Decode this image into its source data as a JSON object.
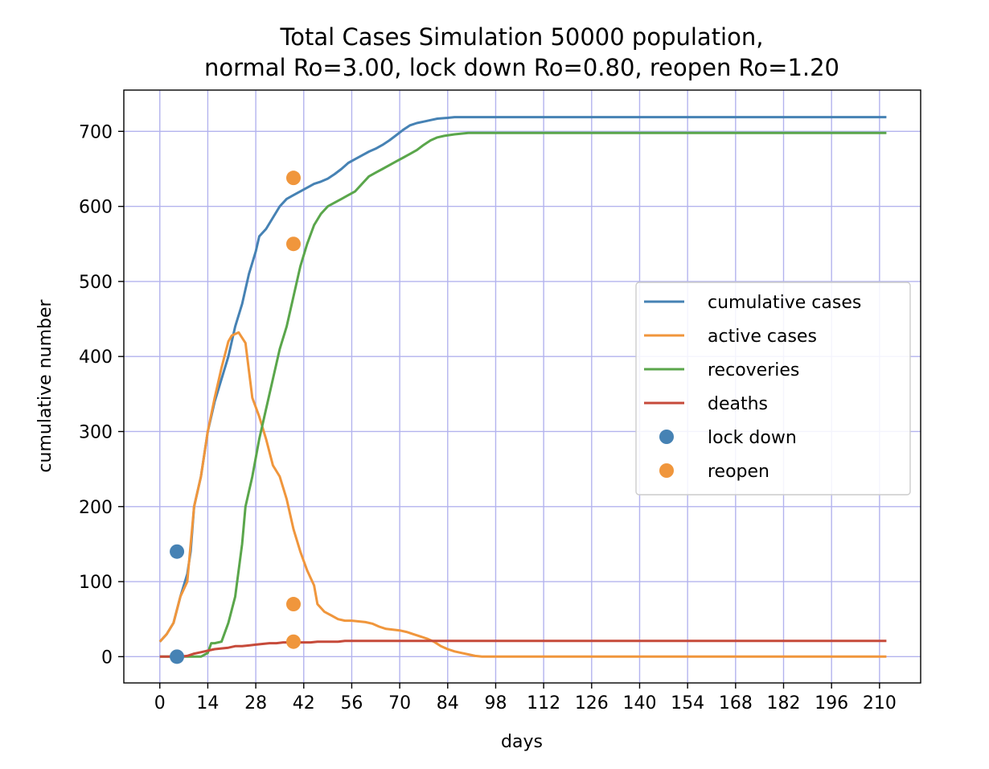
{
  "chart_data": {
    "type": "line",
    "title_lines": [
      "Total Cases Simulation 50000 population,",
      "normal Ro=3.00, lock down Ro=0.80, reopen Ro=1.20"
    ],
    "xlabel": "days",
    "ylabel": "cumulative number",
    "xlim": [
      -10.5,
      222
    ],
    "ylim": [
      -35,
      755
    ],
    "xticks": [
      0,
      14,
      28,
      42,
      56,
      70,
      84,
      98,
      112,
      126,
      140,
      154,
      168,
      182,
      196,
      210
    ],
    "yticks": [
      0,
      100,
      200,
      300,
      400,
      500,
      600,
      700
    ],
    "grid": true,
    "grid_color": "#b3b3ee",
    "legend_position": "center-right",
    "series": [
      {
        "name": "cumulative cases",
        "color": "#4682b4",
        "points": [
          [
            0,
            20
          ],
          [
            2,
            30
          ],
          [
            4,
            45
          ],
          [
            6,
            80
          ],
          [
            8,
            110
          ],
          [
            9,
            140
          ],
          [
            10,
            200
          ],
          [
            12,
            240
          ],
          [
            14,
            300
          ],
          [
            16,
            340
          ],
          [
            18,
            370
          ],
          [
            20,
            400
          ],
          [
            22,
            440
          ],
          [
            24,
            470
          ],
          [
            26,
            510
          ],
          [
            28,
            540
          ],
          [
            29,
            560
          ],
          [
            31,
            570
          ],
          [
            33,
            585
          ],
          [
            35,
            600
          ],
          [
            37,
            610
          ],
          [
            39,
            615
          ],
          [
            41,
            620
          ],
          [
            43,
            625
          ],
          [
            45,
            630
          ],
          [
            47,
            633
          ],
          [
            49,
            637
          ],
          [
            51,
            643
          ],
          [
            53,
            650
          ],
          [
            55,
            658
          ],
          [
            57,
            663
          ],
          [
            59,
            668
          ],
          [
            61,
            673
          ],
          [
            63,
            677
          ],
          [
            65,
            682
          ],
          [
            67,
            688
          ],
          [
            69,
            695
          ],
          [
            71,
            702
          ],
          [
            73,
            708
          ],
          [
            75,
            711
          ],
          [
            77,
            713
          ],
          [
            79,
            715
          ],
          [
            81,
            717
          ],
          [
            84,
            718
          ],
          [
            86,
            719
          ],
          [
            90,
            719
          ],
          [
            100,
            719
          ],
          [
            150,
            719
          ],
          [
            212,
            719
          ]
        ]
      },
      {
        "name": "active cases",
        "color": "#f0963c",
        "points": [
          [
            0,
            20
          ],
          [
            2,
            30
          ],
          [
            4,
            45
          ],
          [
            6,
            80
          ],
          [
            8,
            100
          ],
          [
            10,
            200
          ],
          [
            12,
            240
          ],
          [
            14,
            300
          ],
          [
            16,
            345
          ],
          [
            18,
            385
          ],
          [
            20,
            420
          ],
          [
            21,
            428
          ],
          [
            23,
            432
          ],
          [
            25,
            418
          ],
          [
            27,
            345
          ],
          [
            29,
            320
          ],
          [
            31,
            290
          ],
          [
            33,
            255
          ],
          [
            35,
            240
          ],
          [
            37,
            210
          ],
          [
            39,
            170
          ],
          [
            41,
            140
          ],
          [
            43,
            115
          ],
          [
            45,
            95
          ],
          [
            46,
            70
          ],
          [
            48,
            60
          ],
          [
            50,
            55
          ],
          [
            52,
            50
          ],
          [
            54,
            48
          ],
          [
            56,
            48
          ],
          [
            58,
            47
          ],
          [
            60,
            46
          ],
          [
            62,
            44
          ],
          [
            64,
            40
          ],
          [
            66,
            37
          ],
          [
            68,
            36
          ],
          [
            70,
            35
          ],
          [
            72,
            33
          ],
          [
            74,
            30
          ],
          [
            76,
            27
          ],
          [
            78,
            24
          ],
          [
            80,
            20
          ],
          [
            82,
            14
          ],
          [
            84,
            10
          ],
          [
            86,
            7
          ],
          [
            88,
            5
          ],
          [
            90,
            3
          ],
          [
            92,
            1
          ],
          [
            94,
            0
          ],
          [
            212,
            0
          ]
        ]
      },
      {
        "name": "recoveries",
        "color": "#5aa64b",
        "points": [
          [
            0,
            0
          ],
          [
            12,
            0
          ],
          [
            14,
            5
          ],
          [
            15,
            18
          ],
          [
            16,
            18
          ],
          [
            18,
            20
          ],
          [
            20,
            45
          ],
          [
            22,
            80
          ],
          [
            24,
            150
          ],
          [
            25,
            200
          ],
          [
            27,
            240
          ],
          [
            29,
            290
          ],
          [
            31,
            330
          ],
          [
            33,
            370
          ],
          [
            35,
            410
          ],
          [
            37,
            440
          ],
          [
            39,
            480
          ],
          [
            41,
            520
          ],
          [
            43,
            550
          ],
          [
            45,
            575
          ],
          [
            47,
            590
          ],
          [
            49,
            600
          ],
          [
            51,
            605
          ],
          [
            53,
            610
          ],
          [
            55,
            615
          ],
          [
            57,
            620
          ],
          [
            59,
            630
          ],
          [
            61,
            640
          ],
          [
            63,
            645
          ],
          [
            65,
            650
          ],
          [
            67,
            655
          ],
          [
            69,
            660
          ],
          [
            71,
            665
          ],
          [
            73,
            670
          ],
          [
            75,
            675
          ],
          [
            77,
            682
          ],
          [
            79,
            688
          ],
          [
            81,
            692
          ],
          [
            83,
            694
          ],
          [
            86,
            696
          ],
          [
            90,
            698
          ],
          [
            95,
            698
          ],
          [
            120,
            698
          ],
          [
            212,
            698
          ]
        ]
      },
      {
        "name": "deaths",
        "color": "#c64a3a",
        "points": [
          [
            0,
            0
          ],
          [
            6,
            0
          ],
          [
            8,
            1
          ],
          [
            10,
            4
          ],
          [
            12,
            6
          ],
          [
            14,
            8
          ],
          [
            16,
            10
          ],
          [
            18,
            11
          ],
          [
            20,
            12
          ],
          [
            22,
            14
          ],
          [
            24,
            14
          ],
          [
            26,
            15
          ],
          [
            28,
            16
          ],
          [
            30,
            17
          ],
          [
            32,
            18
          ],
          [
            34,
            18
          ],
          [
            36,
            19
          ],
          [
            38,
            19
          ],
          [
            40,
            19
          ],
          [
            42,
            19
          ],
          [
            44,
            19
          ],
          [
            46,
            20
          ],
          [
            48,
            20
          ],
          [
            50,
            20
          ],
          [
            52,
            20
          ],
          [
            54,
            21
          ],
          [
            56,
            21
          ],
          [
            60,
            21
          ],
          [
            70,
            21
          ],
          [
            90,
            21
          ],
          [
            212,
            21
          ]
        ]
      }
    ],
    "markers": [
      {
        "name": "lock down",
        "color": "#4682b4",
        "points": [
          [
            5,
            140
          ],
          [
            5,
            0
          ]
        ]
      },
      {
        "name": "reopen",
        "color": "#f0963c",
        "points": [
          [
            39,
            638
          ],
          [
            39,
            550
          ],
          [
            39,
            70
          ],
          [
            39,
            20
          ]
        ]
      }
    ],
    "legend": [
      {
        "label": "cumulative cases",
        "kind": "line",
        "color": "#4682b4"
      },
      {
        "label": "active cases",
        "kind": "line",
        "color": "#f0963c"
      },
      {
        "label": "recoveries",
        "kind": "line",
        "color": "#5aa64b"
      },
      {
        "label": "deaths",
        "kind": "line",
        "color": "#c64a3a"
      },
      {
        "label": "lock down",
        "kind": "marker",
        "color": "#4682b4"
      },
      {
        "label": "reopen",
        "kind": "marker",
        "color": "#f0963c"
      }
    ]
  }
}
